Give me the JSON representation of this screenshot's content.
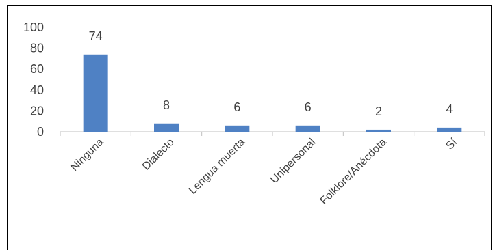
{
  "chart_data": {
    "type": "bar",
    "categories": [
      "Ninguna",
      "Dialecto",
      "Lengua muerta",
      "Unipersonal",
      "Folklore/Anécdota",
      "Sí"
    ],
    "values": [
      74,
      8,
      6,
      6,
      2,
      4
    ],
    "data_labels": [
      "74",
      "8",
      "6",
      "6",
      "2",
      "4"
    ],
    "title": "",
    "xlabel": "",
    "ylabel": "",
    "ylim": [
      0,
      100
    ],
    "yticks": [
      "0",
      "20",
      "40",
      "60",
      "80",
      "100"
    ],
    "grid": false,
    "legend": "none",
    "bar_color": "#4f81c4",
    "text_color": "#404040",
    "axis_color": "#bfbfbf"
  }
}
